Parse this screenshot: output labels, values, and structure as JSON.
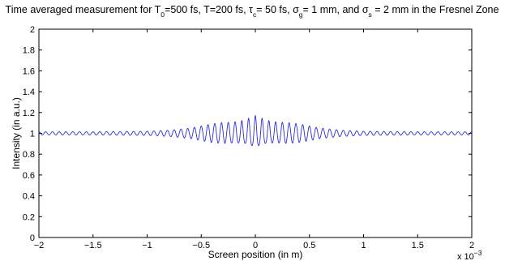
{
  "chart_data": {
    "type": "line",
    "title": {
      "segments": [
        {
          "t": "Time averaged measurement for T"
        },
        {
          "t": "0",
          "sub": true
        },
        {
          "t": "=500 fs, T=200 fs, "
        },
        {
          "t": "τ",
          "greek": true
        },
        {
          "t": "c",
          "sub": true
        },
        {
          "t": "= 50 fs, "
        },
        {
          "t": "σ",
          "greek": true
        },
        {
          "t": "g",
          "sub": true
        },
        {
          "t": "= 1 mm, and "
        },
        {
          "t": "σ",
          "greek": true
        },
        {
          "t": "s",
          "sub": true
        },
        {
          "t": " = 2 mm in the Fresnel Zone"
        }
      ]
    },
    "xlabel": "Screen position (in m)",
    "ylabel": "Intensity (in a.u.)",
    "x_multiplier_label": {
      "base": "x 10",
      "exponent": "−3"
    },
    "xlim": [
      -2,
      2
    ],
    "ylim": [
      0,
      2
    ],
    "x_ticks": [
      -2,
      -1.5,
      -1,
      -0.5,
      0,
      0.5,
      1,
      1.5,
      2
    ],
    "x_tick_labels": [
      "−2",
      "−1.5",
      "−1",
      "−0.5",
      "0",
      "0.5",
      "1",
      "1.5",
      "2"
    ],
    "y_ticks": [
      0,
      0.2,
      0.4,
      0.6,
      0.8,
      1,
      1.2,
      1.4,
      1.6,
      1.8,
      2
    ],
    "y_tick_labels": [
      "0",
      "0.2",
      "0.4",
      "0.6",
      "0.8",
      "1",
      "1.2",
      "1.4",
      "1.6",
      "1.8",
      "2"
    ],
    "grid": false,
    "series": [
      {
        "color": "#2b2bd6",
        "description": "interference fringes around intensity 1; amplitude ~0.02 at edges, up to ~0.15 near center; peak ~1.17 at x=0, dips to ~0.88 near x=±0.02 (x10^-3 m)",
        "baseline": 1.0,
        "fringe_period": 0.0625,
        "envelope": [
          [
            -2.0,
            0.015
          ],
          [
            -1.5,
            0.015
          ],
          [
            -1.0,
            0.02
          ],
          [
            -0.8,
            0.03
          ],
          [
            -0.6,
            0.05
          ],
          [
            -0.5,
            0.07
          ],
          [
            -0.4,
            0.09
          ],
          [
            -0.3,
            0.1
          ],
          [
            -0.2,
            0.1
          ],
          [
            -0.1,
            0.11
          ],
          [
            0.0,
            0.15
          ],
          [
            0.1,
            0.11
          ],
          [
            0.2,
            0.1
          ],
          [
            0.3,
            0.1
          ],
          [
            0.4,
            0.09
          ],
          [
            0.5,
            0.07
          ],
          [
            0.6,
            0.05
          ],
          [
            0.8,
            0.03
          ],
          [
            1.0,
            0.02
          ],
          [
            1.5,
            0.015
          ],
          [
            2.0,
            0.015
          ]
        ],
        "peak": {
          "x": 0.0,
          "y": 1.17
        },
        "min": {
          "x": 0.03,
          "y": 0.88
        }
      }
    ]
  }
}
